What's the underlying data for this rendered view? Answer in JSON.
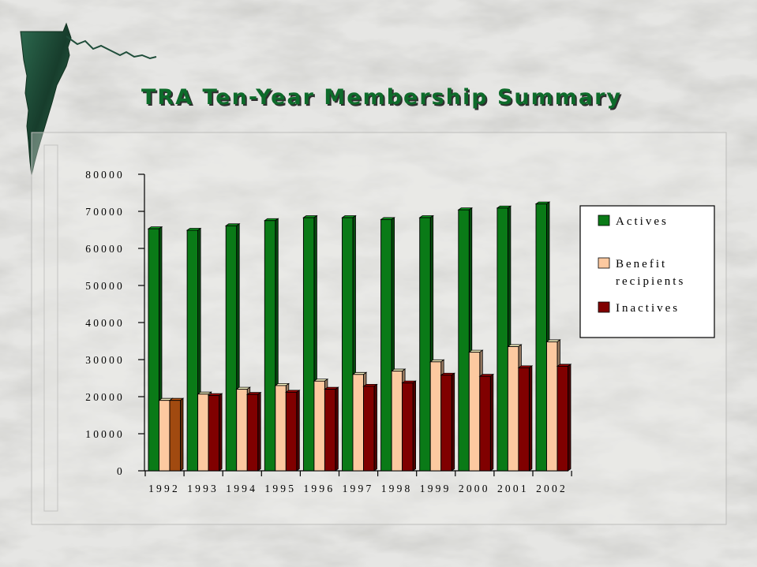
{
  "title": "TRA Ten-Year Membership Summary",
  "colors": {
    "actives": "#0a7a17",
    "benefit": "#fcc9a0",
    "inactives": "#800000",
    "inactives_1992": "#a14a10",
    "title": "#0d6b2a",
    "ornament": "#1f4d3a"
  },
  "chart_data": {
    "type": "bar",
    "title": "TRA Ten-Year Membership Summary",
    "xlabel": "",
    "ylabel": "",
    "ylim": [
      0,
      80000
    ],
    "yticks": [
      0,
      10000,
      20000,
      30000,
      40000,
      50000,
      60000,
      70000,
      80000
    ],
    "categories": [
      "1992",
      "1993",
      "1994",
      "1995",
      "1996",
      "1997",
      "1998",
      "1999",
      "2000",
      "2001",
      "2002"
    ],
    "series": [
      {
        "name": "Actives",
        "values": [
          65300,
          64900,
          66100,
          67500,
          68300,
          68300,
          67800,
          68300,
          70400,
          70900,
          72000
        ]
      },
      {
        "name": "Benefit recipients",
        "values": [
          19000,
          20700,
          22000,
          23000,
          24200,
          26000,
          26900,
          29400,
          32000,
          33500,
          34800
        ]
      },
      {
        "name": "Inactives",
        "values": [
          19000,
          20300,
          20600,
          21200,
          22000,
          22800,
          23700,
          25800,
          25500,
          27800,
          28200
        ]
      }
    ],
    "legend": {
      "position": "right",
      "entries": [
        {
          "label": "Actives",
          "lines": [
            "Actives"
          ]
        },
        {
          "label": "Benefit recipients",
          "lines": [
            "Benefit",
            "recipients"
          ]
        },
        {
          "label": "Inactives",
          "lines": [
            "Inactives"
          ]
        }
      ]
    },
    "grid": false,
    "style": "3d"
  }
}
